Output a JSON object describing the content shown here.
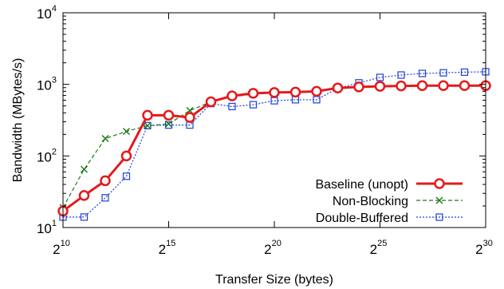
{
  "chart_data": {
    "type": "line",
    "title": "",
    "xlabel": "Transfer Size (bytes)",
    "ylabel": "Bandwidth (MBytes/s)",
    "x_scale": "log2",
    "y_scale": "log10",
    "xlim_exponent": [
      10,
      30
    ],
    "ylim": [
      10,
      10000
    ],
    "x_ticks": [
      {
        "base": "2",
        "exp": "10",
        "value_exp": 10
      },
      {
        "base": "2",
        "exp": "15",
        "value_exp": 15
      },
      {
        "base": "2",
        "exp": "20",
        "value_exp": 20
      },
      {
        "base": "2",
        "exp": "25",
        "value_exp": 25
      },
      {
        "base": "2",
        "exp": "30",
        "value_exp": 30
      }
    ],
    "y_ticks": [
      {
        "base": "10",
        "exp": "1",
        "value": 10
      },
      {
        "base": "10",
        "exp": "2",
        "value": 100
      },
      {
        "base": "10",
        "exp": "3",
        "value": 1000
      },
      {
        "base": "10",
        "exp": "4",
        "value": 10000
      }
    ],
    "x_exponents": [
      10,
      11,
      12,
      13,
      14,
      15,
      16,
      17,
      18,
      19,
      20,
      21,
      22,
      23,
      24,
      25,
      26,
      27,
      28,
      29,
      30
    ],
    "legend_position": "bottom-right",
    "series": [
      {
        "name": "Baseline (unopt)",
        "color": "#e41a1c",
        "marker": "circle",
        "line": "solid",
        "values": [
          17,
          28,
          45,
          100,
          370,
          370,
          345,
          570,
          690,
          750,
          770,
          780,
          800,
          890,
          920,
          940,
          950,
          960,
          960,
          960,
          960
        ]
      },
      {
        "name": "Non-Blocking",
        "color": "#1a7a1a",
        "marker": "x",
        "line": "dashed",
        "values": [
          19,
          65,
          175,
          220,
          265,
          280,
          430,
          570,
          670,
          730,
          770,
          780,
          790,
          880,
          920,
          940,
          950,
          960,
          960,
          960,
          960
        ]
      },
      {
        "name": "Double-Buffered",
        "color": "#1f3fd6",
        "marker": "square",
        "line": "dotted",
        "values": [
          14,
          14,
          26,
          52,
          265,
          270,
          270,
          540,
          490,
          520,
          590,
          610,
          610,
          880,
          1050,
          1250,
          1350,
          1420,
          1450,
          1480,
          1500
        ]
      }
    ]
  }
}
